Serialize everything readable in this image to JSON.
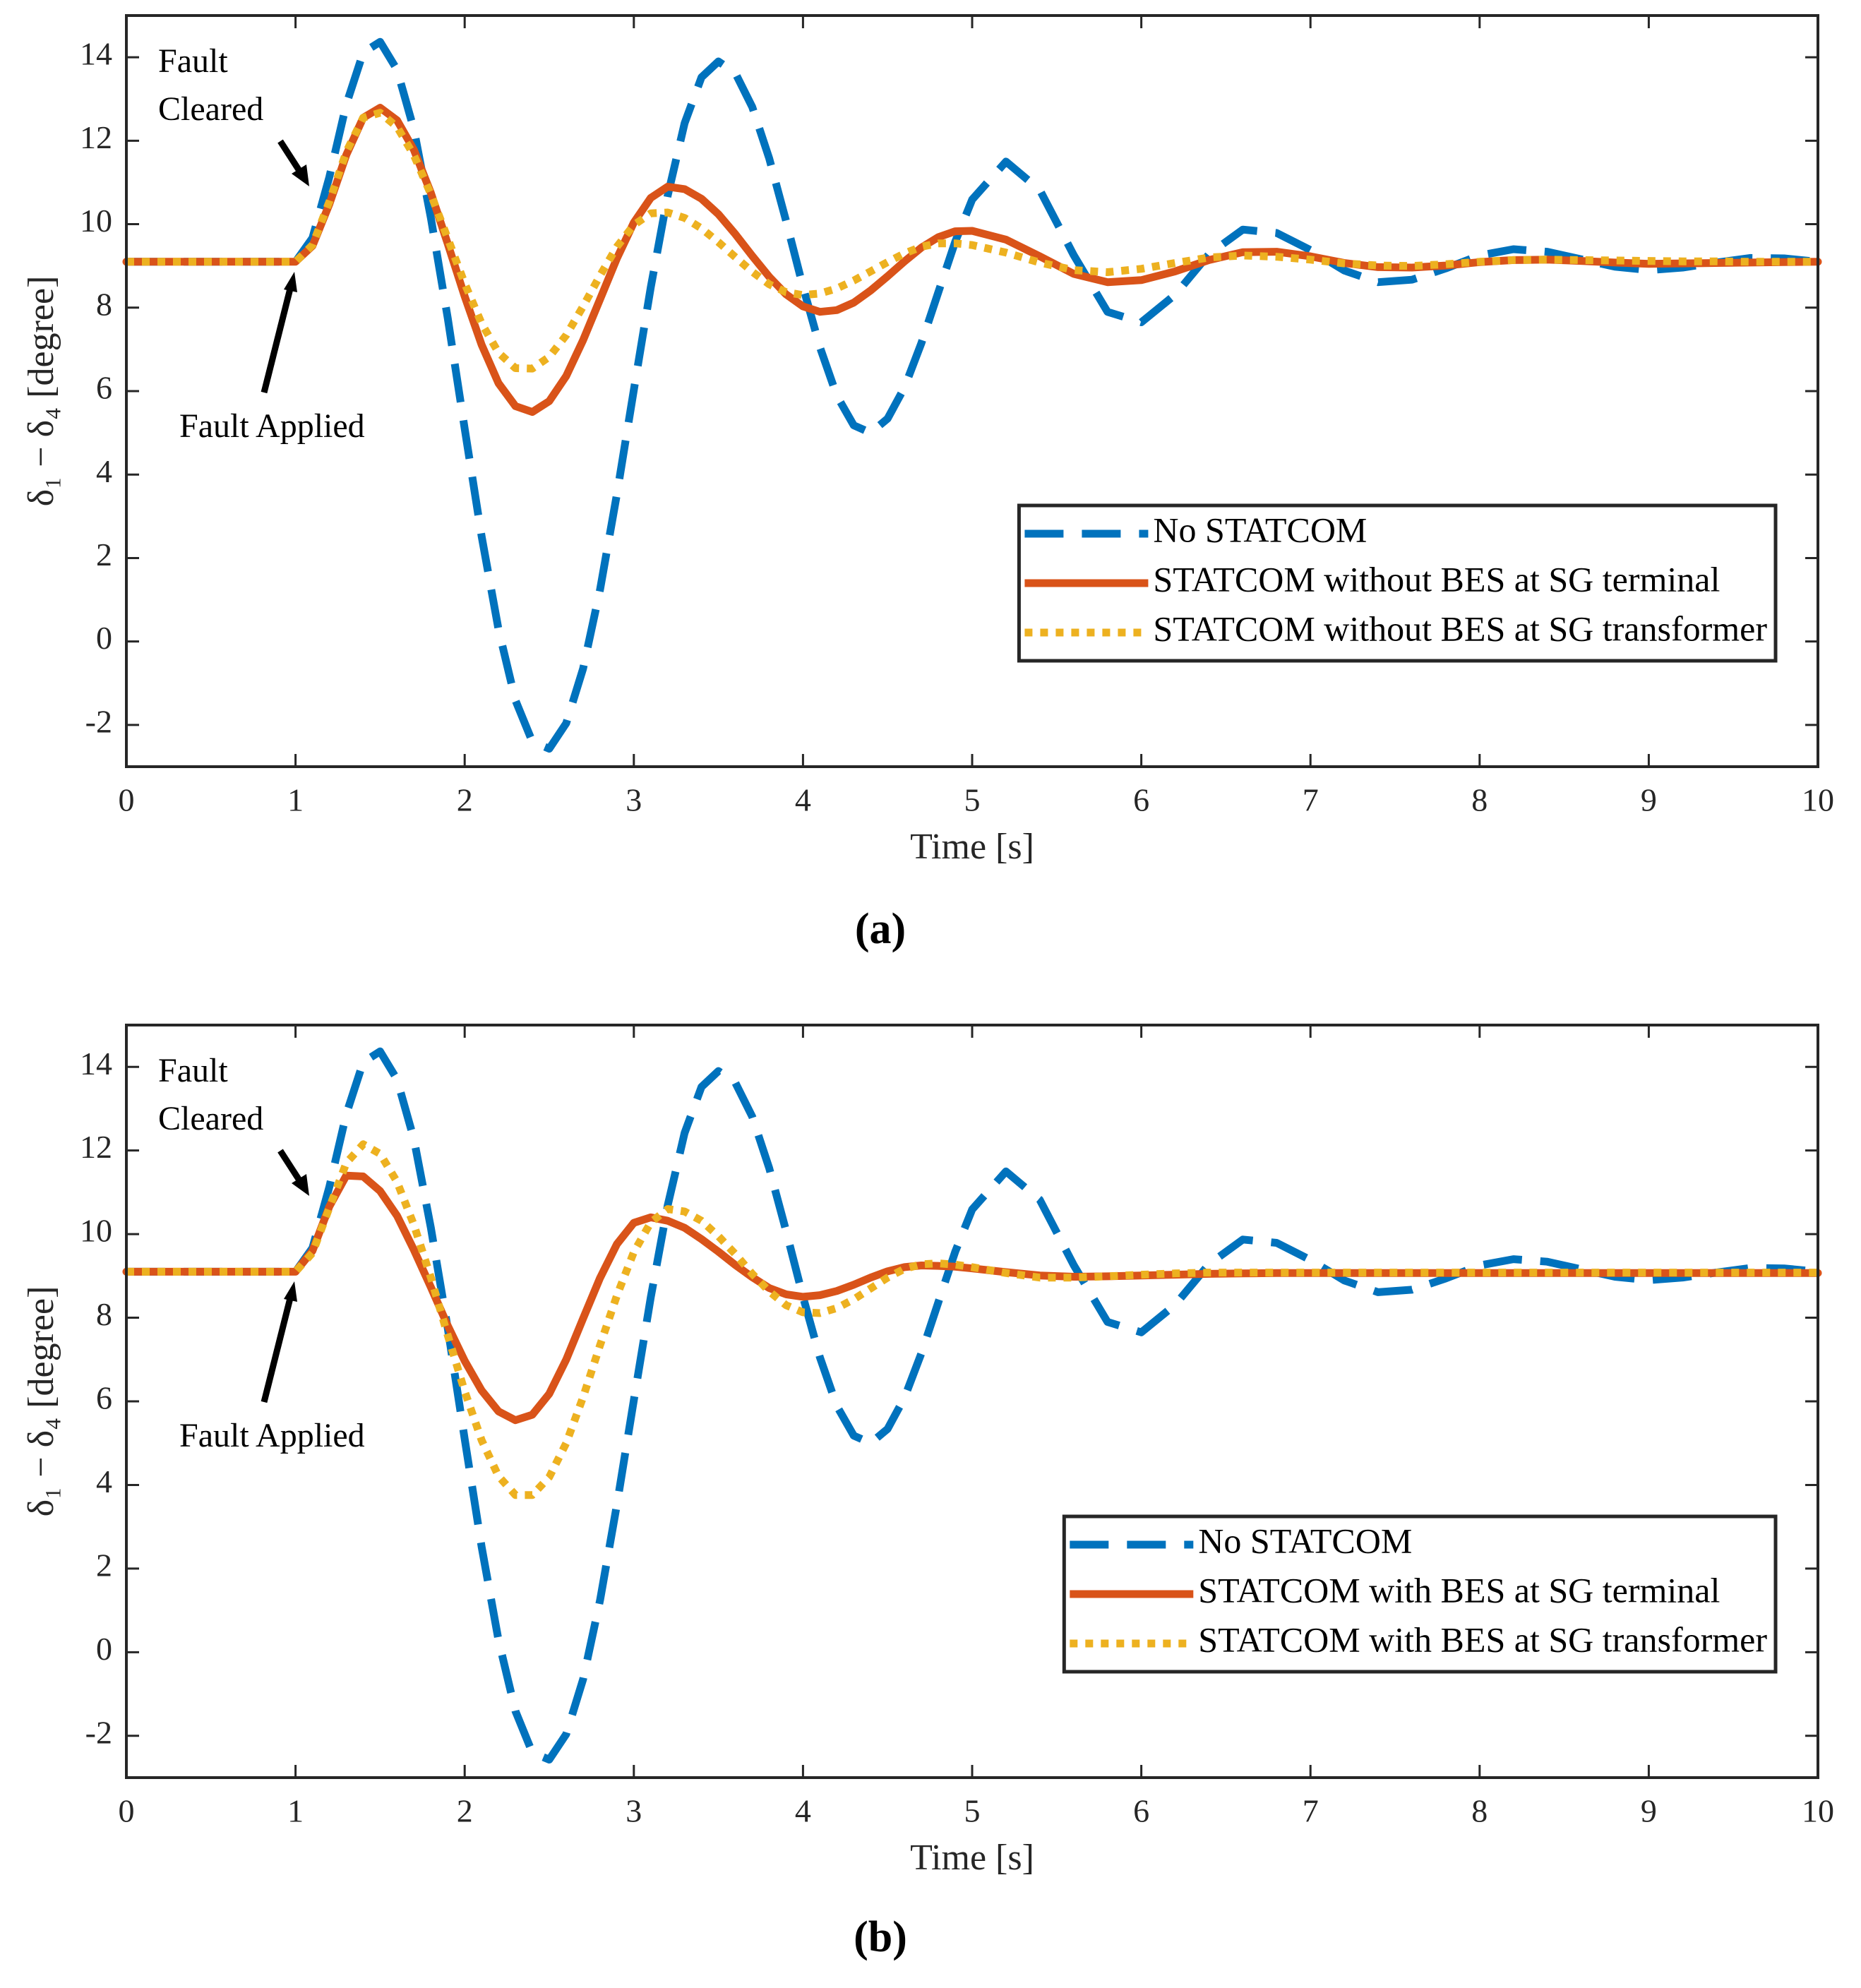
{
  "chart_data": [
    {
      "type": "line",
      "panel_label": "(a)",
      "xlabel": "Time [s]",
      "ylabel": "δ₁ − δ₄ [degree]",
      "xlim": [
        0,
        10
      ],
      "ylim": [
        -3,
        15
      ],
      "xticks": [
        0,
        1,
        2,
        3,
        4,
        5,
        6,
        7,
        8,
        9,
        10
      ],
      "yticks": [
        -2,
        0,
        2,
        4,
        6,
        8,
        10,
        12,
        14
      ],
      "grid": false,
      "legend": "lower right",
      "annotations": [
        {
          "lines": [
            "Fault",
            "Cleared"
          ]
        },
        {
          "lines": [
            "Fault Applied"
          ]
        }
      ],
      "x": [
        0,
        0.5,
        1,
        1.1,
        1.2,
        1.3,
        1.4,
        1.5,
        1.6,
        1.7,
        1.8,
        1.9,
        2,
        2.1,
        2.2,
        2.3,
        2.4,
        2.5,
        2.6,
        2.7,
        2.8,
        2.9,
        3,
        3.1,
        3.2,
        3.3,
        3.4,
        3.5,
        3.6,
        3.7,
        3.8,
        3.9,
        4,
        4.1,
        4.2,
        4.3,
        4.4,
        4.5,
        4.6,
        4.7,
        4.8,
        4.9,
        5,
        5.2,
        5.4,
        5.6,
        5.8,
        6,
        6.2,
        6.4,
        6.6,
        6.8,
        7,
        7.2,
        7.4,
        7.6,
        7.8,
        8,
        8.2,
        8.4,
        8.6,
        8.8,
        9,
        9.2,
        9.4,
        9.6,
        9.8,
        10
      ],
      "series": [
        {
          "name": "No STATCOM",
          "color": "#0072bd",
          "style": "dash",
          "values": [
            9.1,
            9.1,
            9.1,
            9.67,
            11.13,
            12.87,
            14.11,
            14.37,
            13.7,
            12.27,
            10.15,
            7.75,
            5.1,
            2.52,
            0.29,
            -1.41,
            -2.4,
            -2.57,
            -1.96,
            -0.65,
            1.24,
            3.53,
            6.03,
            8.49,
            10.68,
            12.42,
            13.52,
            13.9,
            13.62,
            12.81,
            11.58,
            10.08,
            8.5,
            7.05,
            5.89,
            5.18,
            5.0,
            5.34,
            6.09,
            7.15,
            8.37,
            9.58,
            10.59,
            11.5,
            10.82,
            9.26,
            7.9,
            7.65,
            8.31,
            9.28,
            9.87,
            9.79,
            9.38,
            8.89,
            8.61,
            8.67,
            8.94,
            9.25,
            9.4,
            9.34,
            9.16,
            8.98,
            8.9,
            8.96,
            9.08,
            9.19,
            9.18,
            9.1
          ]
        },
        {
          "name": "STATCOM without BES at SG terminal",
          "color": "#d95319",
          "style": "solid",
          "values": [
            9.1,
            9.1,
            9.1,
            9.48,
            10.48,
            11.66,
            12.55,
            12.79,
            12.49,
            11.78,
            10.75,
            9.53,
            8.27,
            7.11,
            6.19,
            5.64,
            5.5,
            5.76,
            6.36,
            7.22,
            8.2,
            9.18,
            10.04,
            10.63,
            10.9,
            10.84,
            10.61,
            10.24,
            9.76,
            9.24,
            8.74,
            8.32,
            8.03,
            7.9,
            7.94,
            8.12,
            8.41,
            8.75,
            9.11,
            9.44,
            9.69,
            9.83,
            9.84,
            9.63,
            9.23,
            8.81,
            8.61,
            8.66,
            8.87,
            9.14,
            9.33,
            9.34,
            9.23,
            9.07,
            8.97,
            8.96,
            9.01,
            9.09,
            9.14,
            9.15,
            9.12,
            9.08,
            9.05,
            9.06,
            9.07,
            9.08,
            9.09,
            9.1
          ]
        },
        {
          "name": "STATCOM without BES at SG transformer",
          "color": "#edb120",
          "style": "dot",
          "values": [
            9.1,
            9.1,
            9.1,
            9.5,
            10.54,
            11.73,
            12.55,
            12.67,
            12.33,
            11.65,
            10.72,
            9.66,
            8.58,
            7.62,
            6.92,
            6.55,
            6.54,
            6.82,
            7.34,
            8.03,
            8.77,
            9.46,
            9.98,
            10.26,
            10.28,
            10.15,
            9.9,
            9.57,
            9.21,
            8.86,
            8.56,
            8.37,
            8.3,
            8.34,
            8.46,
            8.65,
            8.87,
            9.09,
            9.3,
            9.46,
            9.54,
            9.54,
            9.5,
            9.32,
            9.08,
            8.9,
            8.85,
            8.93,
            9.07,
            9.2,
            9.25,
            9.22,
            9.15,
            9.06,
            9.01,
            9.0,
            9.04,
            9.1,
            9.14,
            9.15,
            9.14,
            9.13,
            9.12,
            9.11,
            9.11,
            9.1,
            9.1,
            9.1
          ]
        }
      ]
    },
    {
      "type": "line",
      "panel_label": "(b)",
      "xlabel": "Time [s]",
      "ylabel": "δ₁ − δ₄ [degree]",
      "xlim": [
        0,
        10
      ],
      "ylim": [
        -3,
        15
      ],
      "xticks": [
        0,
        1,
        2,
        3,
        4,
        5,
        6,
        7,
        8,
        9,
        10
      ],
      "yticks": [
        -2,
        0,
        2,
        4,
        6,
        8,
        10,
        12,
        14
      ],
      "grid": false,
      "legend": "lower right",
      "annotations": [
        {
          "lines": [
            "Fault",
            "Cleared"
          ]
        },
        {
          "lines": [
            "Fault Applied"
          ]
        }
      ],
      "x": [
        0,
        0.5,
        1,
        1.1,
        1.2,
        1.3,
        1.4,
        1.5,
        1.6,
        1.7,
        1.8,
        1.9,
        2,
        2.1,
        2.2,
        2.3,
        2.4,
        2.5,
        2.6,
        2.7,
        2.8,
        2.9,
        3,
        3.1,
        3.2,
        3.3,
        3.4,
        3.5,
        3.6,
        3.7,
        3.8,
        3.9,
        4,
        4.1,
        4.2,
        4.3,
        4.4,
        4.5,
        4.6,
        4.7,
        4.8,
        4.9,
        5,
        5.2,
        5.4,
        5.6,
        5.8,
        6,
        6.2,
        6.4,
        6.6,
        6.8,
        7,
        7.2,
        7.4,
        7.6,
        7.8,
        8,
        8.2,
        8.4,
        8.6,
        8.8,
        9,
        9.2,
        9.4,
        9.6,
        9.8,
        10
      ],
      "series": [
        {
          "name": "No STATCOM",
          "color": "#0072bd",
          "style": "dash",
          "values": [
            9.1,
            9.1,
            9.1,
            9.67,
            11.13,
            12.87,
            14.11,
            14.37,
            13.7,
            12.27,
            10.15,
            7.75,
            5.1,
            2.52,
            0.29,
            -1.41,
            -2.4,
            -2.57,
            -1.96,
            -0.65,
            1.24,
            3.53,
            6.03,
            8.49,
            10.68,
            12.42,
            13.52,
            13.9,
            13.62,
            12.81,
            11.58,
            10.08,
            8.5,
            7.05,
            5.89,
            5.18,
            5.0,
            5.34,
            6.09,
            7.15,
            8.37,
            9.58,
            10.59,
            11.5,
            10.82,
            9.26,
            7.9,
            7.65,
            8.31,
            9.28,
            9.87,
            9.79,
            9.38,
            8.89,
            8.61,
            8.67,
            8.94,
            9.25,
            9.4,
            9.34,
            9.16,
            8.98,
            8.9,
            8.96,
            9.08,
            9.19,
            9.18,
            9.1
          ]
        },
        {
          "name": "STATCOM with BES at SG terminal",
          "color": "#d95319",
          "style": "solid",
          "values": [
            9.1,
            9.1,
            9.1,
            9.6,
            10.66,
            11.4,
            11.38,
            11.03,
            10.44,
            9.62,
            8.73,
            7.81,
            6.97,
            6.26,
            5.76,
            5.55,
            5.68,
            6.18,
            7.0,
            7.98,
            8.95,
            9.76,
            10.27,
            10.4,
            10.32,
            10.15,
            9.88,
            9.58,
            9.26,
            8.97,
            8.71,
            8.56,
            8.5,
            8.54,
            8.64,
            8.79,
            8.96,
            9.11,
            9.21,
            9.25,
            9.24,
            9.22,
            9.18,
            9.09,
            9.01,
            8.98,
            8.99,
            9.01,
            9.03,
            9.05,
            9.06,
            9.07,
            9.07,
            9.07,
            9.07,
            9.07,
            9.07,
            9.07,
            9.07,
            9.07,
            9.07,
            9.07,
            9.07,
            9.07,
            9.07,
            9.07,
            9.07,
            9.07
          ]
        },
        {
          "name": "STATCOM with BES at SG transformer",
          "color": "#edb120",
          "style": "dot",
          "values": [
            9.1,
            9.1,
            9.1,
            9.55,
            10.63,
            11.7,
            12.15,
            11.92,
            11.25,
            10.22,
            8.96,
            7.58,
            6.24,
            5.07,
            4.21,
            3.76,
            3.76,
            4.19,
            5.0,
            6.1,
            7.34,
            8.53,
            9.57,
            10.28,
            10.6,
            10.54,
            10.32,
            9.95,
            9.52,
            9.05,
            8.63,
            8.3,
            8.13,
            8.11,
            8.23,
            8.44,
            8.7,
            8.96,
            9.17,
            9.28,
            9.3,
            9.27,
            9.21,
            9.07,
            8.96,
            8.96,
            8.99,
            9.03,
            9.06,
            9.08,
            9.08,
            9.08,
            9.08,
            9.08,
            9.08,
            9.08,
            9.08,
            9.08,
            9.08,
            9.08,
            9.08,
            9.08,
            9.08,
            9.08,
            9.08,
            9.08,
            9.08,
            9.08
          ]
        }
      ]
    }
  ]
}
